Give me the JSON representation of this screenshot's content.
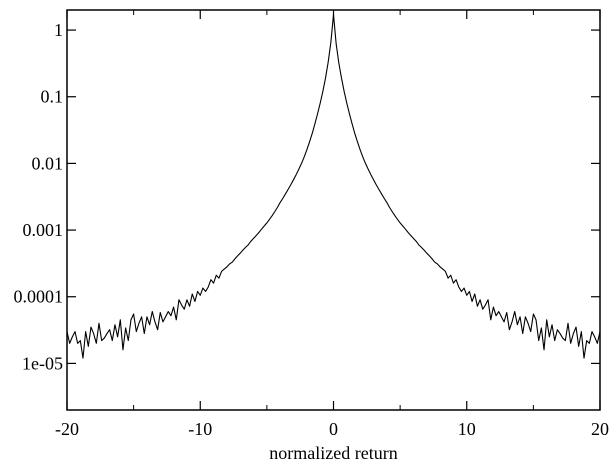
{
  "chart_data": {
    "type": "line",
    "xlabel": "normalized return",
    "ylabel": "",
    "title": "",
    "xlim": [
      -20,
      20
    ],
    "ylim": [
      2e-06,
      2.0
    ],
    "yscale": "log",
    "grid": false,
    "legend": "none",
    "line_color": "#000000",
    "x_ticks": [
      -20,
      -10,
      0,
      10,
      20
    ],
    "x_tick_labels": [
      "-20",
      "-10",
      "0",
      "10",
      "20"
    ],
    "y_ticks": [
      1,
      0.1,
      0.01,
      0.001,
      0.0001,
      1e-05
    ],
    "y_tick_labels": [
      "1",
      "0.1",
      "0.01",
      "0.001",
      "0.0001",
      "1e-05"
    ],
    "series": [
      {
        "x": [
          -20,
          -19.8,
          -19.6,
          -19.4,
          -19.2,
          -19,
          -18.8,
          -18.6,
          -18.4,
          -18.2,
          -18,
          -17.8,
          -17.6,
          -17.4,
          -17.2,
          -17,
          -16.8,
          -16.6,
          -16.4,
          -16.2,
          -16,
          -15.8,
          -15.6,
          -15.4,
          -15.2,
          -15,
          -14.8,
          -14.6,
          -14.4,
          -14.2,
          -14,
          -13.8,
          -13.6,
          -13.4,
          -13.2,
          -13,
          -12.8,
          -12.6,
          -12.4,
          -12.2,
          -12,
          -11.8,
          -11.6,
          -11.4,
          -11.2,
          -11,
          -10.8,
          -10.6,
          -10.4,
          -10.2,
          -10,
          -9.8,
          -9.6,
          -9.4,
          -9.2,
          -9,
          -8.8,
          -8.6,
          -8.4,
          -8.2,
          -8,
          -7.8,
          -7.6,
          -7.4,
          -7.2,
          -7,
          -6.8,
          -6.6,
          -6.4,
          -6.2,
          -6,
          -5.8,
          -5.6,
          -5.4,
          -5.2,
          -5,
          -4.8,
          -4.6,
          -4.4,
          -4.2,
          -4,
          -3.8,
          -3.6,
          -3.4,
          -3.2,
          -3,
          -2.8,
          -2.6,
          -2.4,
          -2.2,
          -2,
          -1.8,
          -1.6,
          -1.4,
          -1.2,
          -1,
          -0.8,
          -0.6,
          -0.4,
          -0.2,
          0,
          0.2,
          0.4,
          0.6,
          0.8,
          1,
          1.2,
          1.4,
          1.6,
          1.8,
          2,
          2.2,
          2.4,
          2.6,
          2.8,
          3,
          3.2,
          3.4,
          3.6,
          3.8,
          4,
          4.2,
          4.4,
          4.6,
          4.8,
          5,
          5.2,
          5.4,
          5.6,
          5.8,
          6,
          6.2,
          6.4,
          6.6,
          6.8,
          7,
          7.2,
          7.4,
          7.6,
          7.8,
          8,
          8.2,
          8.4,
          8.6,
          8.8,
          9,
          9.2,
          9.4,
          9.6,
          9.8,
          10,
          10.2,
          10.4,
          10.6,
          10.8,
          11,
          11.2,
          11.4,
          11.6,
          11.8,
          12,
          12.2,
          12.4,
          12.6,
          12.8,
          13,
          13.2,
          13.4,
          13.6,
          13.8,
          14,
          14.2,
          14.4,
          14.6,
          14.8,
          15,
          15.2,
          15.4,
          15.6,
          15.8,
          16,
          16.2,
          16.4,
          16.6,
          16.8,
          17,
          17.2,
          17.4,
          17.6,
          17.8,
          18,
          18.2,
          18.4,
          18.6,
          18.8,
          19,
          19.2,
          19.4,
          19.6,
          19.8,
          20
        ],
        "y": [
          3e-05,
          2e-05,
          2.5e-05,
          3e-05,
          2e-05,
          2.2e-05,
          1.2e-05,
          3e-05,
          1.8e-05,
          3.5e-05,
          2.8e-05,
          2e-05,
          4e-05,
          2.2e-05,
          2.4e-05,
          2.8e-05,
          3.2e-05,
          2.2e-05,
          3.8e-05,
          2.5e-05,
          4.5e-05,
          1.6e-05,
          3.4e-05,
          2.2e-05,
          4.5e-05,
          5.5e-05,
          3e-05,
          4e-05,
          5e-05,
          2.8e-05,
          5e-05,
          3.8e-05,
          6e-05,
          4.2e-05,
          3.2e-05,
          5.8e-05,
          4.2e-05,
          5e-05,
          6e-05,
          5.2e-05,
          7e-05,
          4.5e-05,
          9e-05,
          7.5e-05,
          6.5e-05,
          9e-05,
          7.2e-05,
          0.00011,
          8.5e-05,
          0.00012,
          0.000105,
          0.000135,
          0.00012,
          0.00014,
          0.00018,
          0.00016,
          0.00021,
          0.00019,
          0.00024,
          0.00026,
          0.00028,
          0.00031,
          0.00033,
          0.00037,
          0.00041,
          0.00045,
          0.0005,
          0.00055,
          0.0006,
          0.00068,
          0.00075,
          0.00083,
          0.00092,
          0.00103,
          0.00115,
          0.00128,
          0.00145,
          0.00165,
          0.0019,
          0.0022,
          0.0026,
          0.003,
          0.0035,
          0.0041,
          0.0048,
          0.0057,
          0.0068,
          0.0082,
          0.01,
          0.0125,
          0.016,
          0.021,
          0.028,
          0.039,
          0.055,
          0.08,
          0.12,
          0.19,
          0.33,
          0.65,
          1.7,
          0.62,
          0.32,
          0.19,
          0.12,
          0.08,
          0.055,
          0.039,
          0.028,
          0.021,
          0.016,
          0.0125,
          0.01,
          0.0082,
          0.0068,
          0.0057,
          0.0048,
          0.0041,
          0.0035,
          0.003,
          0.0026,
          0.0022,
          0.0019,
          0.00165,
          0.00145,
          0.00128,
          0.00115,
          0.00103,
          0.00092,
          0.00083,
          0.00075,
          0.00068,
          0.0006,
          0.00055,
          0.0005,
          0.00045,
          0.00041,
          0.00037,
          0.00033,
          0.00031,
          0.00028,
          0.00026,
          0.00024,
          0.00019,
          0.00021,
          0.00016,
          0.00018,
          0.00014,
          0.00012,
          0.000135,
          0.000105,
          0.00012,
          8.5e-05,
          0.00011,
          7.2e-05,
          9e-05,
          6.5e-05,
          7.5e-05,
          9e-05,
          4.5e-05,
          7e-05,
          5.2e-05,
          6e-05,
          5e-05,
          4.2e-05,
          5.8e-05,
          3.2e-05,
          4.2e-05,
          6e-05,
          3.8e-05,
          5e-05,
          2.8e-05,
          5e-05,
          4e-05,
          3e-05,
          5.5e-05,
          4.5e-05,
          2.2e-05,
          3.4e-05,
          1.6e-05,
          4.5e-05,
          2.5e-05,
          3.8e-05,
          2.2e-05,
          3.2e-05,
          2.8e-05,
          2.4e-05,
          2.2e-05,
          4e-05,
          2e-05,
          2.8e-05,
          3.5e-05,
          1.8e-05,
          3e-05,
          1.2e-05,
          2.2e-05,
          2e-05,
          3e-05,
          2.5e-05,
          2e-05,
          3e-05
        ]
      }
    ]
  }
}
